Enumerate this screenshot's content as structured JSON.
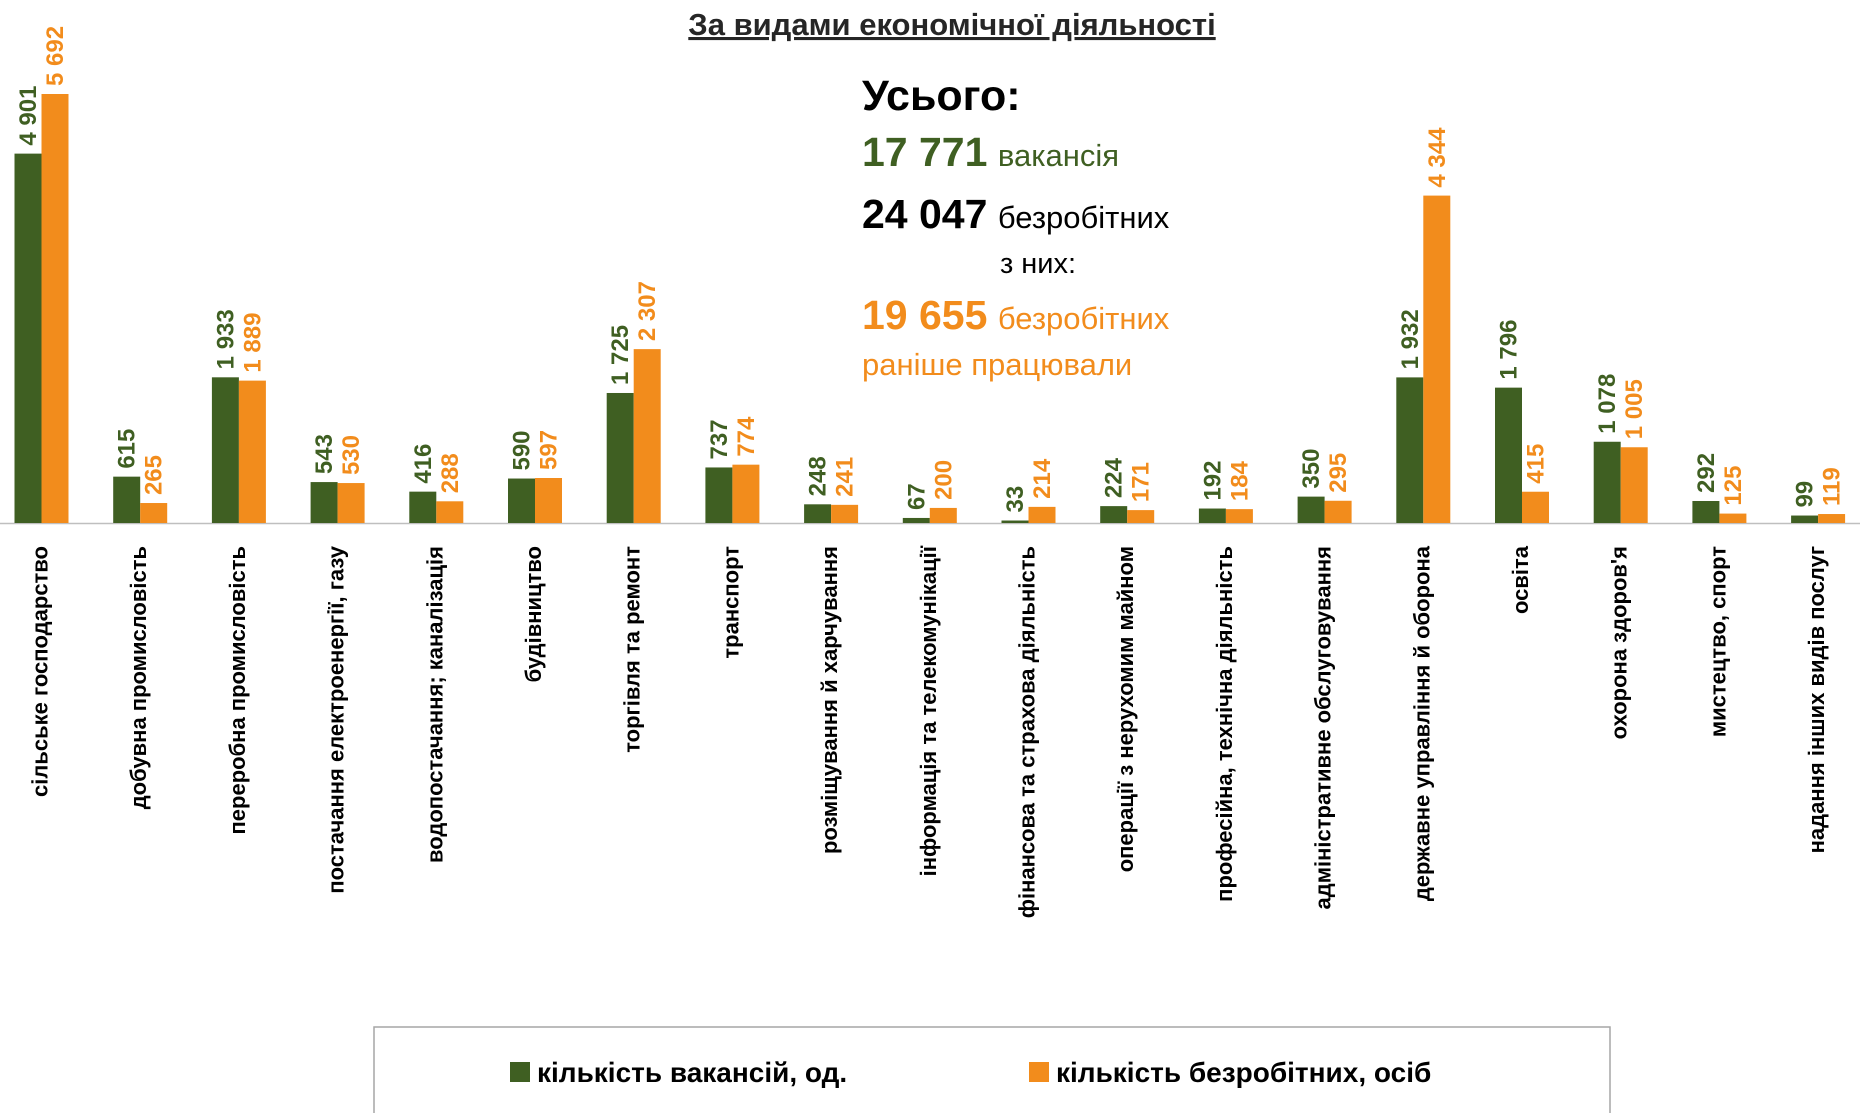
{
  "chart_data": {
    "type": "bar",
    "title": "За видами економічної діяльності",
    "annotations": [
      "Усього:",
      "17 771",
      "вакансія",
      "24 047",
      "безробітних",
      "з них:",
      "19 655",
      "безробітних",
      "раніше працювали"
    ],
    "categories": [
      "сільське господарство",
      "добувна промисловість",
      "переробна промисловість",
      "постачання електроенергії, газу",
      "водопостачання; каналізація",
      "будівництво",
      "торгівля та ремонт",
      "транспорт",
      "розміщування й харчування",
      "інформація та телекомунікації",
      "фінансова та страхова діяльність",
      "операції з нерухомим майном",
      "професійна, технічна діяльність",
      "адміністративне обслуговування",
      "державне управління й оборона",
      "освіта",
      "охорона здоров'я",
      "мистецтво, спорт",
      "надання інших видів послуг"
    ],
    "series": [
      {
        "name": "кількість вакансій, од.",
        "color": "#3f5f22",
        "values": [
          4901,
          615,
          1933,
          543,
          416,
          590,
          1725,
          737,
          248,
          67,
          33,
          224,
          192,
          350,
          1932,
          1796,
          1078,
          292,
          99
        ],
        "value_labels": [
          "4 901",
          "615",
          "1 933",
          "543",
          "416",
          "590",
          "1 725",
          "737",
          "248",
          "67",
          "33",
          "224",
          "192",
          "350",
          "1 932",
          "1 796",
          "1 078",
          "292",
          "99"
        ]
      },
      {
        "name": "кількість безробітних, осіб",
        "color": "#f28c1c",
        "values": [
          5692,
          265,
          1889,
          530,
          288,
          597,
          2307,
          774,
          241,
          200,
          214,
          171,
          184,
          295,
          4344,
          415,
          1005,
          125,
          119
        ],
        "value_labels": [
          "5 692",
          "265",
          "1 889",
          "530",
          "288",
          "597",
          "2 307",
          "774",
          "241",
          "200",
          "214",
          "171",
          "184",
          "295",
          "4 344",
          "415",
          "1 005",
          "125",
          "119"
        ]
      }
    ],
    "legend": "bottom"
  }
}
